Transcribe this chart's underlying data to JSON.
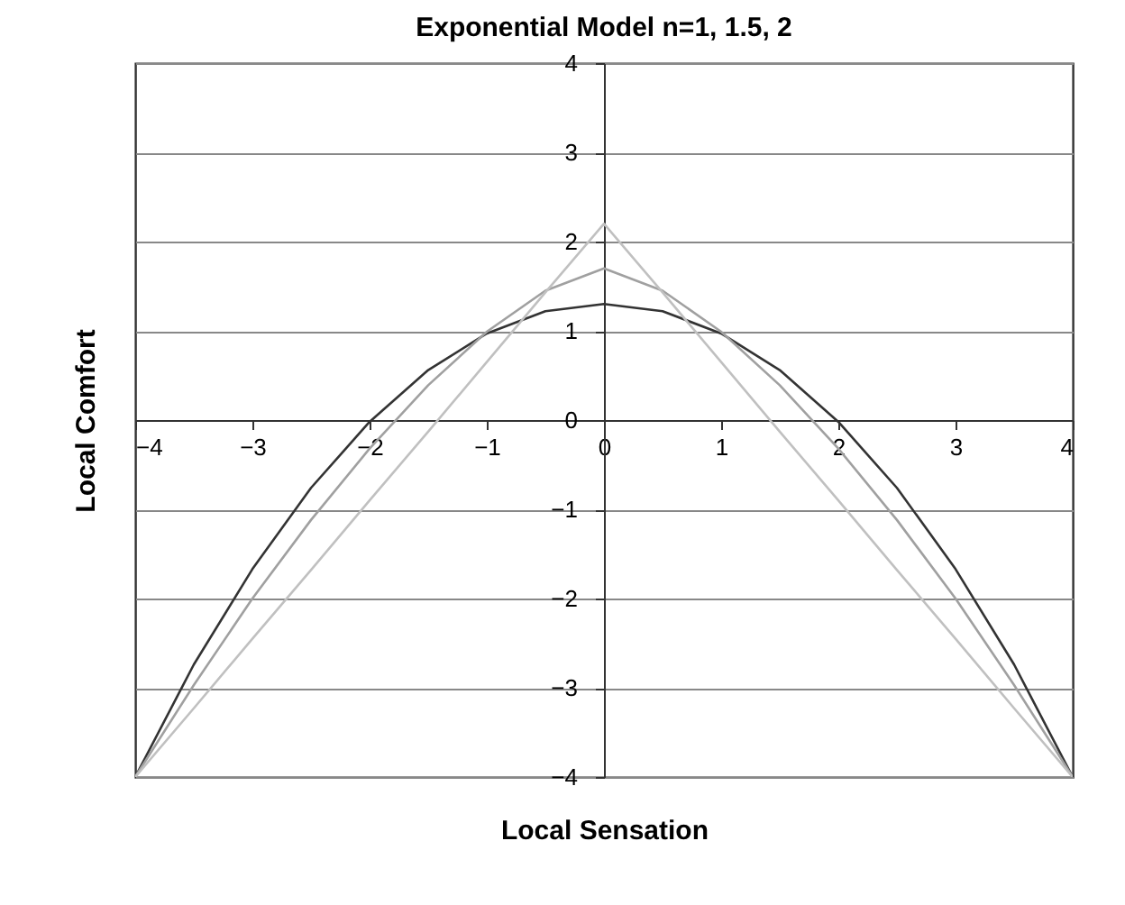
{
  "chart_data": {
    "type": "line",
    "title": "Exponential Model n=1, 1.5, 2",
    "xlabel": "Local Sensation",
    "ylabel": "Local Comfort",
    "x": [
      -4,
      -3.5,
      -3,
      -2.5,
      -2,
      -1.5,
      -1,
      -0.5,
      0,
      0.5,
      1,
      1.5,
      2,
      2.5,
      3,
      3.5,
      4
    ],
    "series": [
      {
        "color": "#333333",
        "values": [
          -4,
          -2.74,
          -1.67,
          -0.76,
          -0.02,
          0.56,
          0.97,
          1.22,
          1.3,
          1.22,
          0.97,
          0.56,
          -0.02,
          -0.76,
          -1.67,
          -2.74,
          -4
        ]
      },
      {
        "color": "#a0a0a0",
        "values": [
          -4,
          -2.97,
          -2,
          -1.12,
          -0.32,
          0.39,
          0.99,
          1.45,
          1.7,
          1.45,
          0.99,
          0.39,
          -0.32,
          -1.12,
          -2,
          -2.97,
          -4
        ]
      },
      {
        "color": "#c0c0c0",
        "values": [
          -4,
          -3.23,
          -2.45,
          -1.68,
          -0.9,
          -0.13,
          0.65,
          1.43,
          2.2,
          1.43,
          0.65,
          -0.13,
          -0.9,
          -1.68,
          -2.45,
          -3.23,
          -4
        ]
      }
    ],
    "xlim": [
      -4,
      4
    ],
    "ylim": [
      -4,
      4
    ],
    "xticks": [
      -4,
      -3,
      -2,
      -1,
      0,
      1,
      2,
      3,
      4
    ],
    "yticks": [
      -4,
      -3,
      -2,
      -1,
      0,
      1,
      2,
      3,
      4
    ],
    "grid": "y",
    "line_style": "solid"
  }
}
